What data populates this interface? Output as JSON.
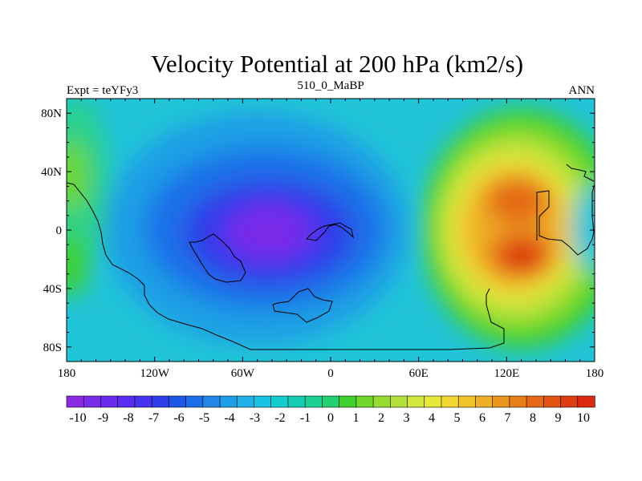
{
  "chart_data": {
    "type": "heatmap",
    "title": "Velocity Potential at 200 hPa (km2/s)",
    "left_string": "Expt = teYFy3",
    "center_string": "510_0_MaBP",
    "right_string": "ANN",
    "xlim": [
      -180,
      180
    ],
    "ylim": [
      -90,
      90
    ],
    "x_ticks": [
      {
        "value": -180,
        "label": "180"
      },
      {
        "value": -120,
        "label": "120W"
      },
      {
        "value": -60,
        "label": "60W"
      },
      {
        "value": 0,
        "label": "0"
      },
      {
        "value": 60,
        "label": "60E"
      },
      {
        "value": 120,
        "label": "120E"
      },
      {
        "value": 180,
        "label": "180"
      }
    ],
    "y_ticks": [
      {
        "value": 80,
        "label": "80N"
      },
      {
        "value": 40,
        "label": "40N"
      },
      {
        "value": 0,
        "label": "0"
      },
      {
        "value": -40,
        "label": "40S"
      },
      {
        "value": -80,
        "label": "80S"
      }
    ],
    "colorbar": {
      "labels": [
        "-10",
        "-9",
        "-8",
        "-7",
        "-6",
        "-5",
        "-4",
        "-3",
        "-2",
        "-1",
        "0",
        "1",
        "2",
        "3",
        "4",
        "5",
        "6",
        "7",
        "8",
        "9",
        "10"
      ],
      "colors": [
        "#8a2be2",
        "#7a2be8",
        "#6a2bee",
        "#5a2bf0",
        "#4834f0",
        "#2d3de8",
        "#1e56e8",
        "#1a6fe8",
        "#2286e6",
        "#1e9ee6",
        "#20b2e8",
        "#19c3e2",
        "#15ccd0",
        "#17ccb4",
        "#1dd096",
        "#22d070",
        "#40d22c",
        "#6fd62a",
        "#96dc33",
        "#b4e23a",
        "#d2e83f",
        "#e8e83a",
        "#f2d830",
        "#f2c42b",
        "#eeae26",
        "#e89620",
        "#e87e1a",
        "#e46816",
        "#e05414",
        "#de3c12",
        "#dc2a10"
      ]
    },
    "field_extrema": [
      {
        "name": "minimum",
        "lon": -38,
        "lat": 0,
        "value": -10
      },
      {
        "name": "maximum",
        "lon": 138,
        "lat": -20,
        "value": 9
      },
      {
        "name": "maximum",
        "lon": 130,
        "lat": 20,
        "value": 8.5
      }
    ]
  }
}
